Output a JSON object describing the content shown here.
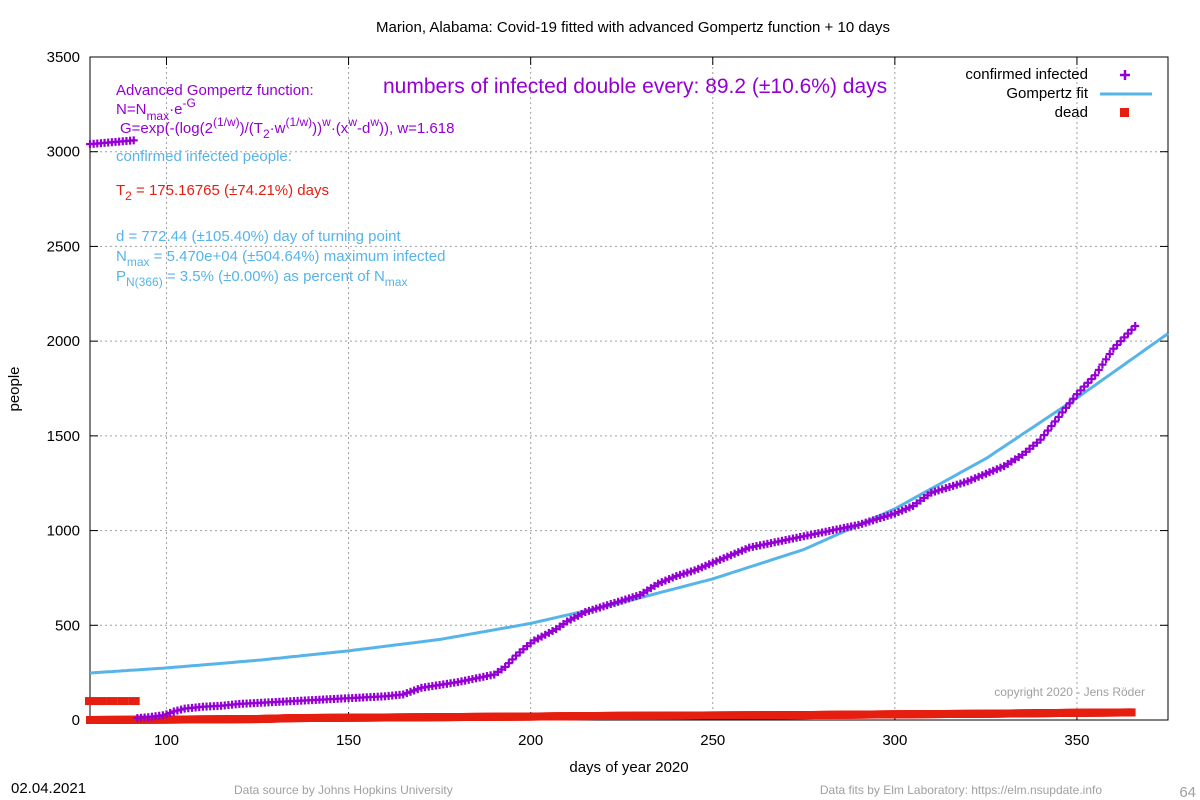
{
  "chart_data": {
    "type": "scatter",
    "title": "Marion,  Alabama: Covid-19 fitted with advanced Gompertz function + 10 days",
    "xlabel": "days of year 2020",
    "ylabel": "people",
    "xlim": [
      79,
      375
    ],
    "ylim": [
      0,
      3500
    ],
    "xticks": [
      100,
      150,
      200,
      250,
      300,
      350
    ],
    "yticks": [
      0,
      500,
      1000,
      1500,
      2000,
      2500,
      3000,
      3500
    ],
    "grid": true,
    "legend_position": "top-right",
    "legend": [
      {
        "label": "confirmed infected",
        "marker": "plus",
        "color": "#9400d3"
      },
      {
        "label": "Gompertz fit",
        "marker": "line",
        "color": "#56b4e9"
      },
      {
        "label": "dead",
        "marker": "square",
        "color": "#e51e10"
      }
    ],
    "series": [
      {
        "name": "confirmed infected",
        "color": "#9400d3",
        "marker": "plus",
        "x": [
          79,
          82,
          85,
          88,
          91,
          92,
          95,
          97,
          99,
          100,
          102,
          105,
          110,
          115,
          120,
          125,
          130,
          135,
          140,
          145,
          150,
          155,
          160,
          165,
          170,
          175,
          180,
          185,
          190,
          193,
          196,
          199,
          201,
          204,
          207,
          210,
          215,
          220,
          225,
          230,
          235,
          240,
          245,
          250,
          255,
          260,
          265,
          270,
          275,
          280,
          285,
          290,
          295,
          300,
          305,
          310,
          315,
          320,
          325,
          330,
          335,
          340,
          345,
          350,
          355,
          360,
          363,
          366
        ],
        "y": [
          3040,
          3045,
          3050,
          3055,
          3060,
          10,
          15,
          20,
          25,
          30,
          45,
          60,
          70,
          75,
          85,
          90,
          95,
          100,
          105,
          110,
          115,
          120,
          125,
          135,
          170,
          185,
          200,
          220,
          240,
          280,
          340,
          390,
          420,
          450,
          480,
          520,
          570,
          600,
          630,
          660,
          720,
          760,
          790,
          830,
          870,
          910,
          930,
          950,
          970,
          990,
          1010,
          1030,
          1060,
          1090,
          1130,
          1200,
          1230,
          1260,
          1300,
          1340,
          1400,
          1480,
          1600,
          1720,
          1820,
          1960,
          2020,
          2080
        ]
      },
      {
        "name": "Gompertz fit",
        "color": "#56b4e9",
        "marker": "line",
        "x": [
          79,
          100,
          125,
          150,
          175,
          200,
          225,
          250,
          275,
          300,
          325,
          350,
          375
        ],
        "y": [
          248,
          275,
          315,
          365,
          425,
          510,
          620,
          745,
          900,
          1115,
          1380,
          1700,
          2040
        ]
      },
      {
        "name": "dead",
        "color": "#e51e10",
        "marker": "square",
        "x": [
          79,
          82,
          85,
          88,
          91,
          79,
          100,
          125,
          135,
          150,
          175,
          190,
          200,
          210,
          225,
          250,
          275,
          300,
          325,
          350,
          365
        ],
        "y": [
          100,
          100,
          100,
          100,
          100,
          0,
          2,
          5,
          10,
          12,
          15,
          17,
          18,
          20,
          22,
          24,
          26,
          30,
          33,
          38,
          40
        ]
      }
    ],
    "annotations": {
      "doubling": "numbers of infected double every: 89.2 (±10.6%) days",
      "func_title": "Advanced Gompertz function:",
      "func_n_a": "N=N",
      "func_n_sub": "max",
      "func_n_b": "·e",
      "func_n_sup": "-G",
      "func_g_a": "G=exp(-(log(2",
      "func_g_sup1": "(1/w)",
      "func_g_b": ")/(T",
      "func_g_sub2": "2",
      "func_g_c": "·w",
      "func_g_sup2": "(1/w)",
      "func_g_d": "))",
      "func_g_sup3": "w",
      "func_g_e": "·(x",
      "func_g_sup4": "w",
      "func_g_f": "-d",
      "func_g_sup5": "w",
      "func_g_g": ")), w=1.618",
      "confirmed_label": "confirmed infected people:",
      "t2_a": "T",
      "t2_sub": "2",
      "t2_b": " = 175.16765 (±74.21%) days",
      "d_line": "d = 772.44 (±105.40%) day of turning point",
      "nmax_a": "N",
      "nmax_sub": "max",
      "nmax_b": " = 5.470e+04 (±504.64%) maximum infected",
      "p_a": "P",
      "p_sub": "N(366)",
      "p_b": " = 3.5% (±0.00%) as percent of N",
      "p_sub2": "max",
      "copyright": "copyright 2020 - Jens Röder"
    }
  },
  "footer": {
    "date": "02.04.2021",
    "source": "Data source by Johns Hopkins University",
    "fits": "Data fits by Elm Laboratory: https://elm.nsupdate.info",
    "page_number": "64"
  }
}
